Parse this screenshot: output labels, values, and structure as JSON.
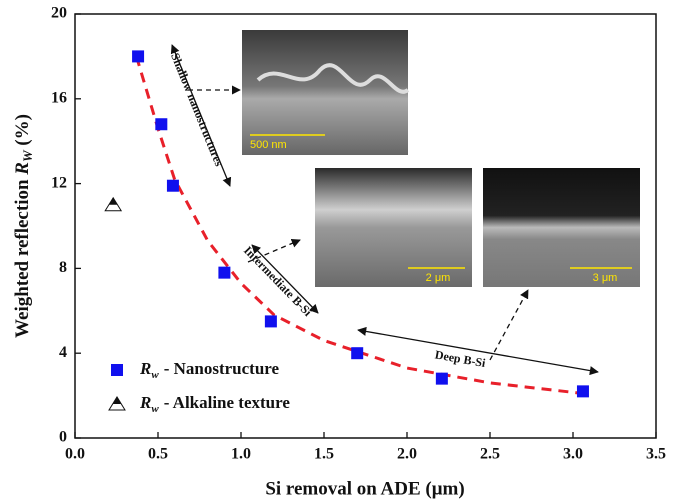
{
  "chart_data": {
    "type": "scatter",
    "x_label": "Si removal on ADE (μm)",
    "y_label": {
      "text": "Weighted reflection",
      "symbol": "R",
      "subscript": "W",
      "unit": "(%)"
    },
    "xlim": [
      0,
      3.5
    ],
    "xticks": [
      {
        "value": 0,
        "label": "0.0"
      },
      0.5,
      {
        "value": 1,
        "label": "1.0"
      },
      1.5,
      {
        "value": 2,
        "label": "2.0"
      },
      2.5,
      {
        "value": 3,
        "label": "3.0"
      },
      3.5
    ],
    "ylim": [
      0,
      20
    ],
    "yticks": [
      0,
      4,
      8,
      12,
      16,
      20
    ],
    "legend": "lower left",
    "series": [
      {
        "name": "- Nanostructure",
        "symbol": "R",
        "subscript": "w",
        "marker": "square",
        "color": "#1010ee",
        "x": [
          0.38,
          0.52,
          0.59,
          0.9,
          1.18,
          1.7,
          2.21,
          3.06
        ],
        "values": [
          18.0,
          14.8,
          11.9,
          7.8,
          5.5,
          4.0,
          2.8,
          2.2
        ]
      },
      {
        "name": "- Alkaline texture",
        "symbol": "R",
        "subscript": "w",
        "marker": "triangle",
        "color": "#111111",
        "x": [
          0.23
        ],
        "values": [
          11.0
        ]
      }
    ],
    "fit_curve": {
      "color": "#e8202a",
      "x": [
        0.37,
        0.5,
        0.6,
        0.8,
        1.0,
        1.2,
        1.5,
        2.0,
        2.5,
        3.06
      ],
      "values": [
        18.0,
        14.6,
        12.2,
        9.3,
        7.3,
        5.8,
        4.6,
        3.3,
        2.6,
        2.1
      ]
    },
    "annotations": {
      "shallow": "Shallow nanostructures",
      "intermediate": "Intermediate B-Si",
      "deep": "Deep B-Si",
      "scale_1": "500 nm",
      "scale_2": "2 μm",
      "scale_3": "3 μm"
    }
  }
}
